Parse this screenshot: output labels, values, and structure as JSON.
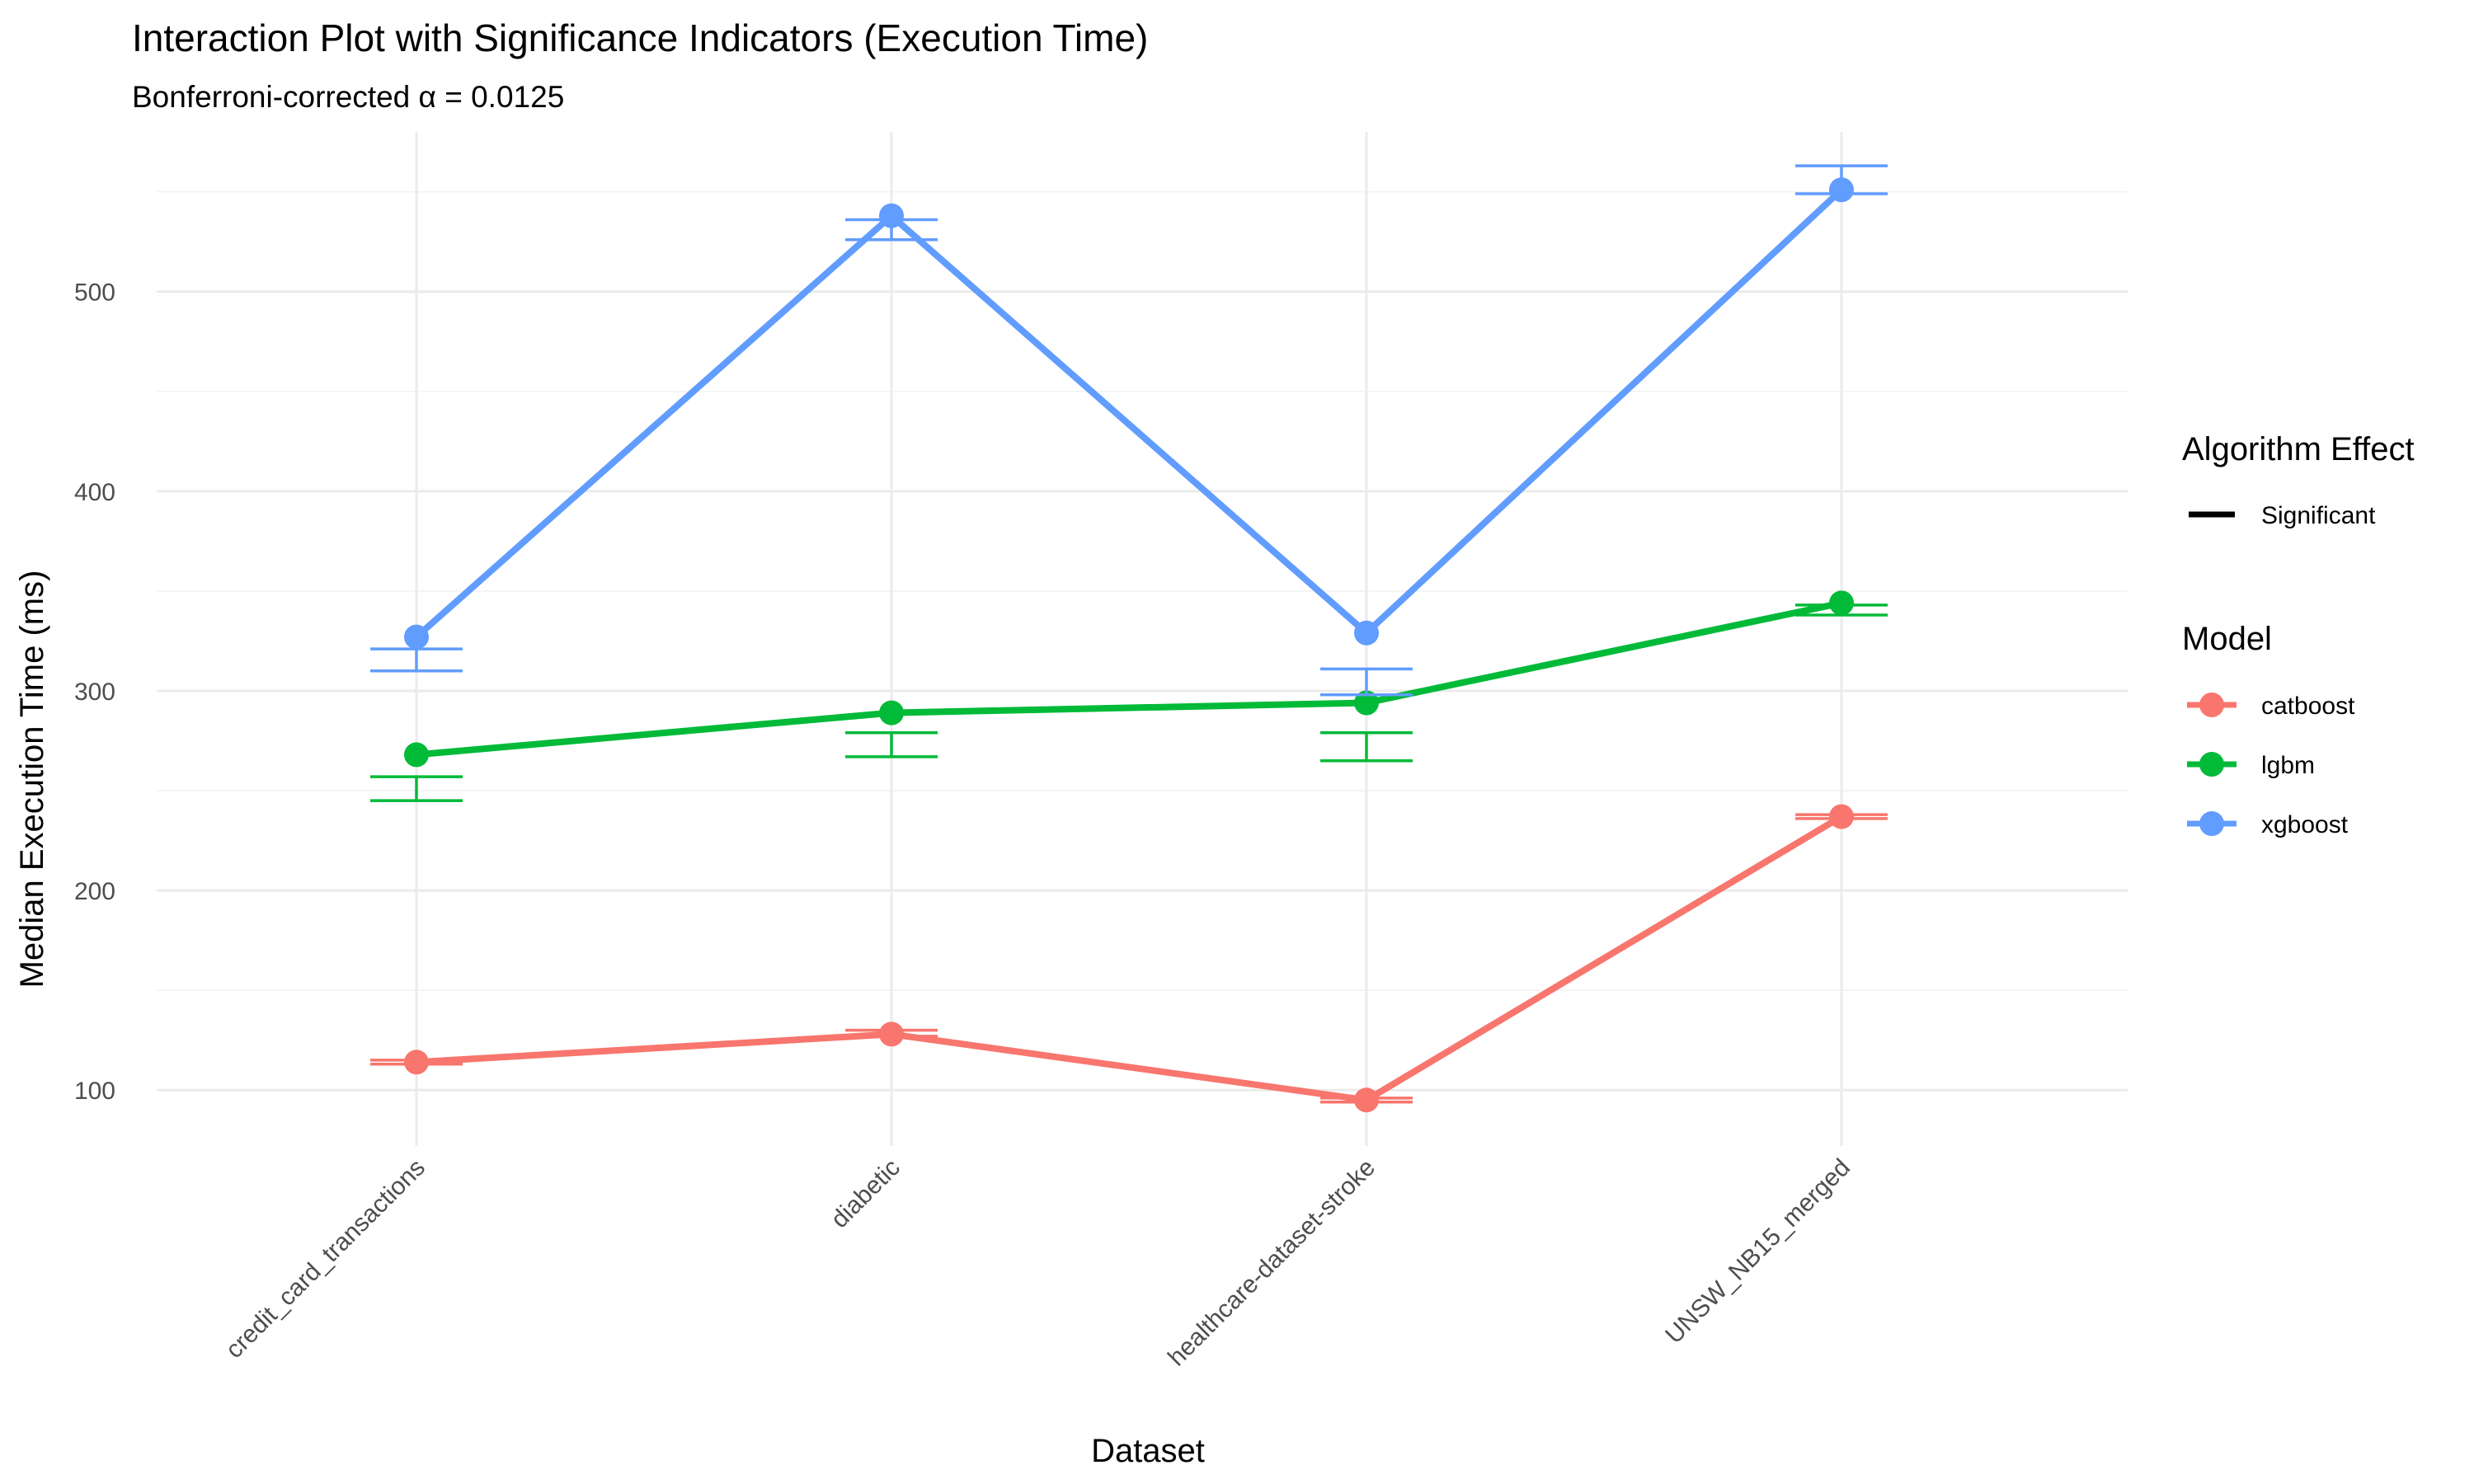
{
  "chart_data": {
    "type": "line",
    "title": "Interaction Plot with Significance Indicators (Execution Time)",
    "subtitle": "Bonferroni-corrected α = 0.0125",
    "xlabel": "Dataset",
    "ylabel": "Median Execution Time (ms)",
    "categories": [
      "credit_card_transactions",
      "diabetic",
      "healthcare-dataset-stroke",
      "UNSW_NB15_merged"
    ],
    "ylim": [
      72,
      580
    ],
    "yticks": [
      100,
      200,
      300,
      400,
      500
    ],
    "yticks_labels": [
      "100",
      "200",
      "300",
      "400",
      "500"
    ],
    "yminor": [
      150,
      250,
      350,
      450,
      550
    ],
    "grid": true,
    "series": [
      {
        "name": "catboost",
        "color": "#F8766D",
        "values": [
          114,
          128,
          95,
          237
        ],
        "err_low": [
          113,
          127,
          94,
          236
        ],
        "err_high": [
          115,
          130,
          96,
          238
        ]
      },
      {
        "name": "lgbm",
        "color": "#00BA38",
        "values": [
          268,
          289,
          294,
          344
        ],
        "err_low": [
          245,
          267,
          265,
          338
        ],
        "err_high": [
          257,
          279,
          279,
          343
        ]
      },
      {
        "name": "xgboost",
        "color": "#619CFF",
        "values": [
          327,
          538,
          329,
          551
        ],
        "err_low": [
          310,
          526,
          298,
          549
        ],
        "err_high": [
          321,
          536,
          311,
          563
        ]
      }
    ],
    "legend": {
      "placement": "right",
      "linetype_title": "Algorithm Effect",
      "linetype_entries": [
        "Significant"
      ],
      "color_title": "Model"
    }
  }
}
